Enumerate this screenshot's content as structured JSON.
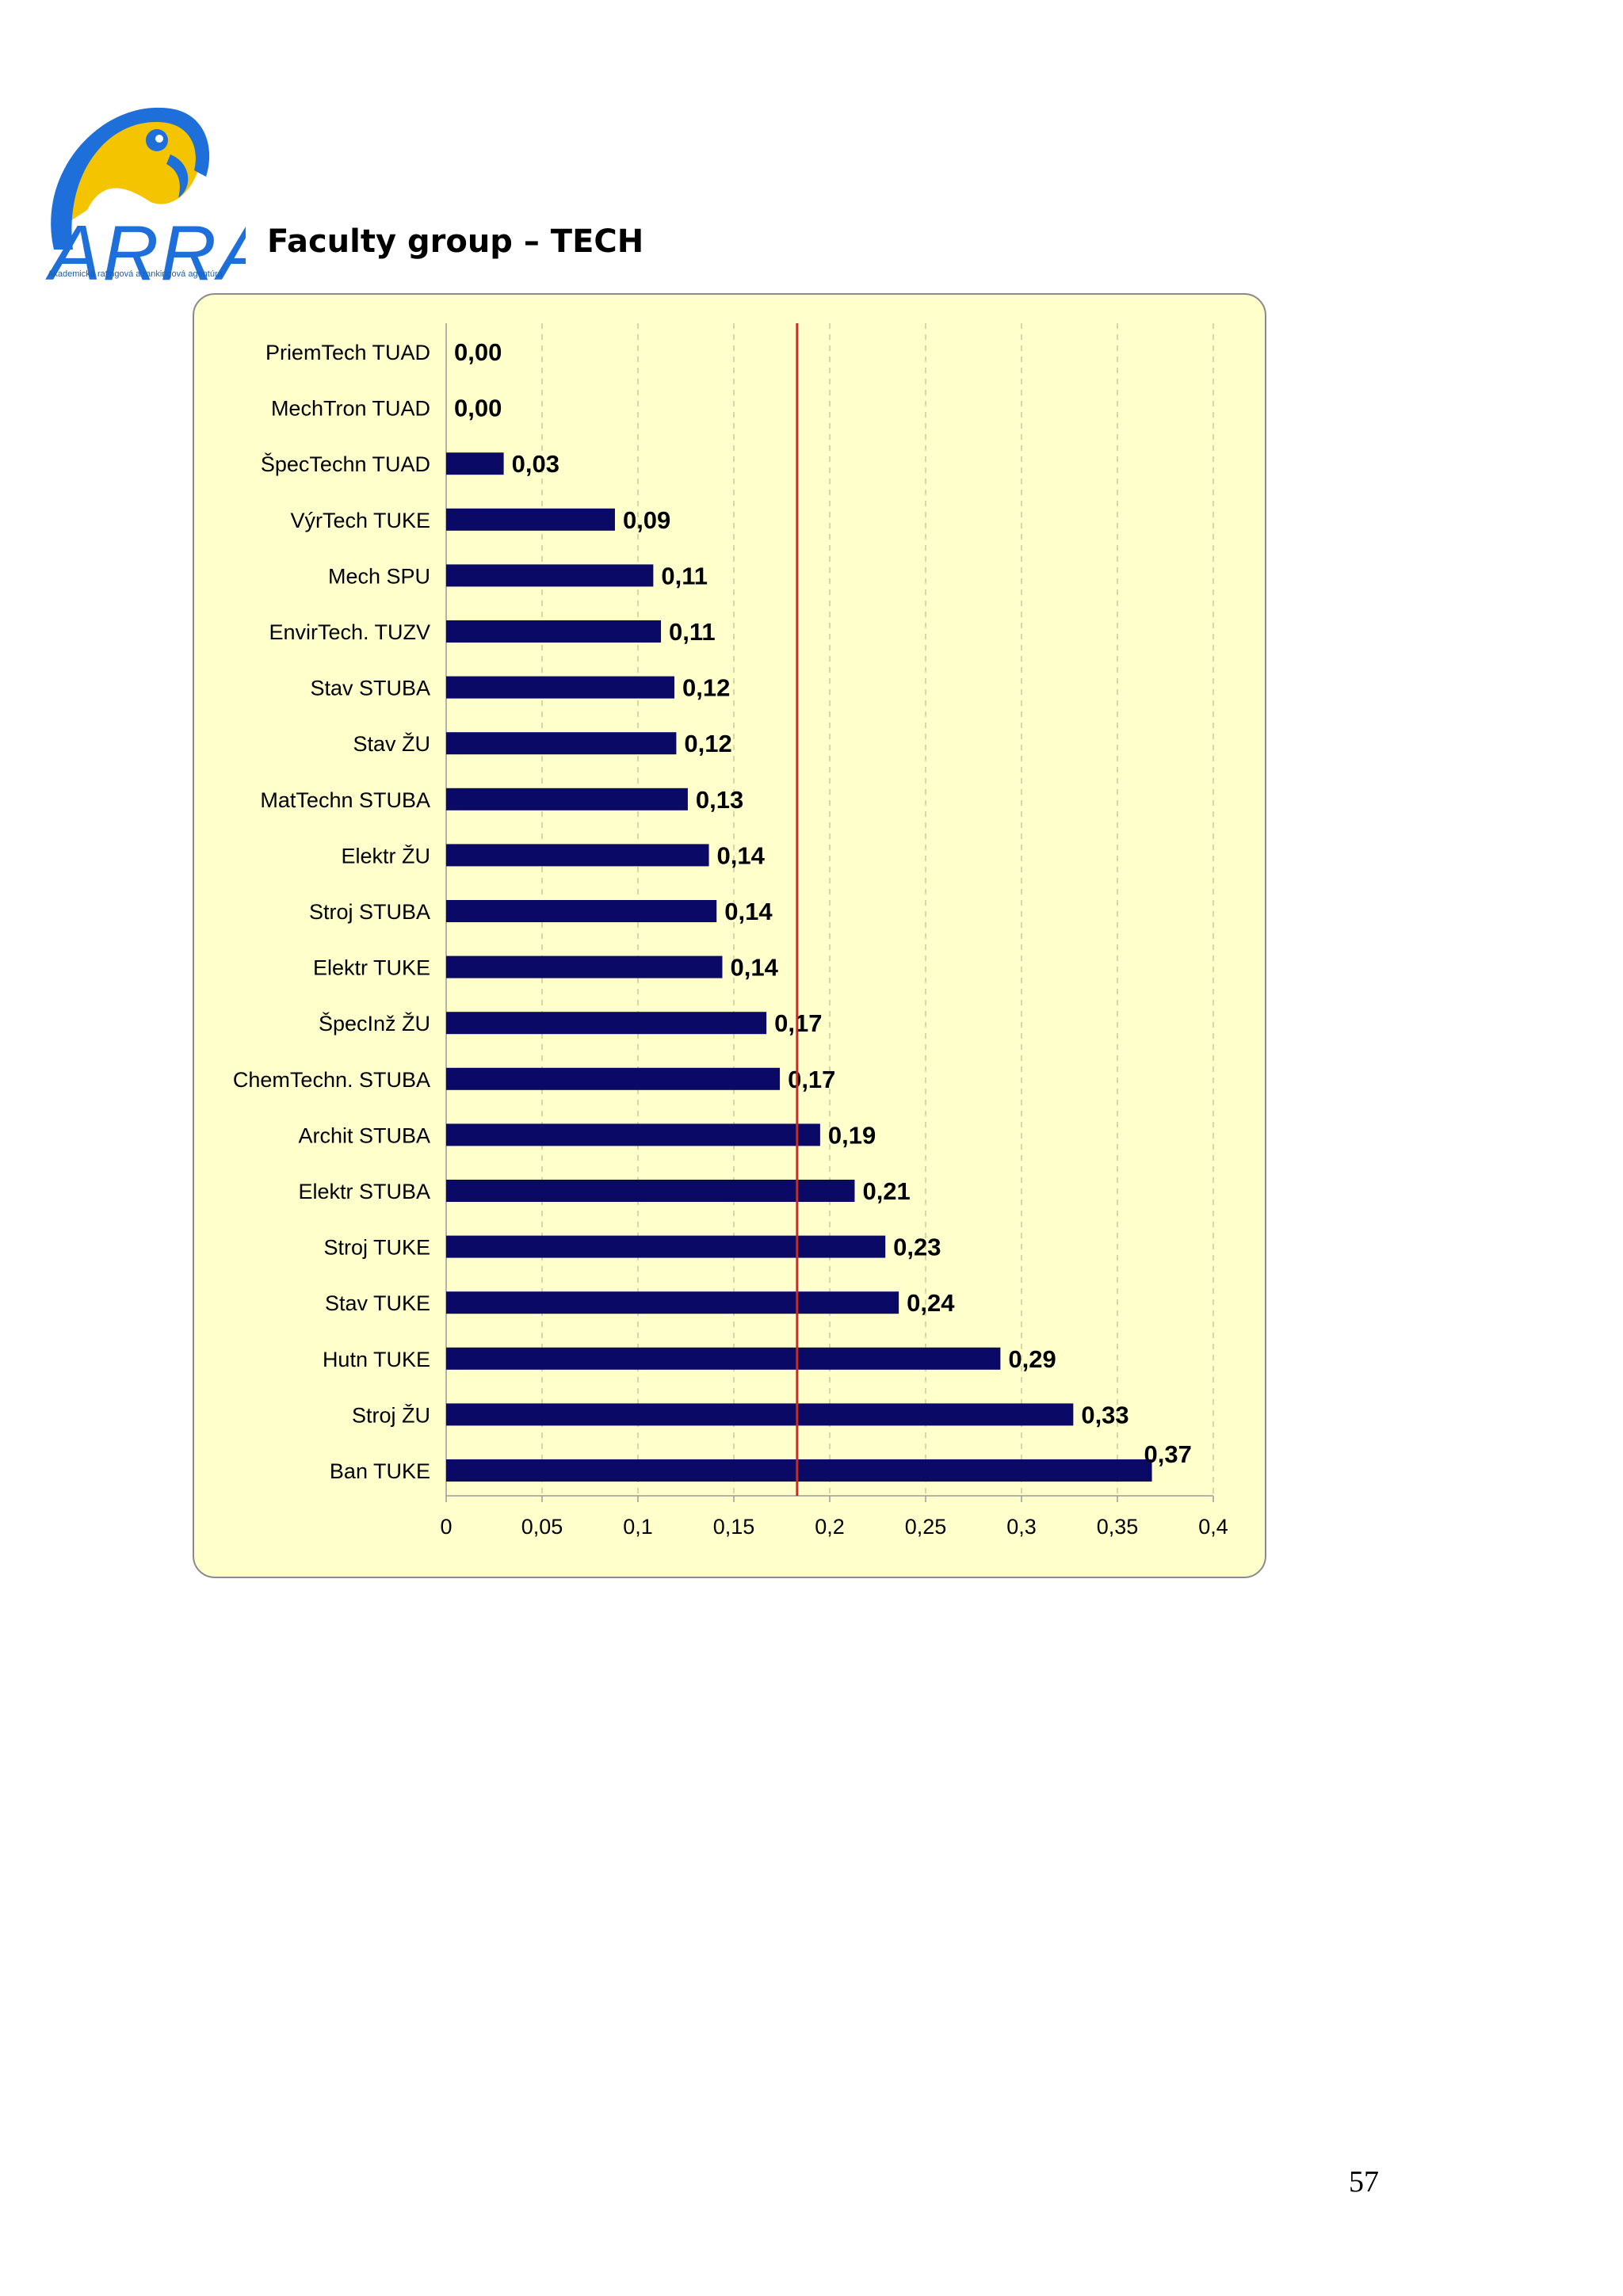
{
  "header": {
    "logo_text": "ARRA",
    "logo_tagline": "Akademická ratingová a rankingová agentúra",
    "title": "Faculty group – TECH"
  },
  "colors": {
    "bar": "#0a0a66",
    "reference_line": "#c0302a",
    "panel_bg": "#ffffcc",
    "logo_blue": "#1e6fd9",
    "logo_yellow": "#f5c400"
  },
  "chart_data": {
    "type": "bar",
    "orientation": "horizontal",
    "categories": [
      "PriemTech TUAD",
      "MechTron TUAD",
      "ŠpecTechn TUAD",
      "VýrTech TUKE",
      "Mech SPU",
      "EnvirTech. TUZV",
      "Stav STUBA",
      "Stav ŽU",
      "MatTechn STUBA",
      "Elektr ŽU",
      "Stroj STUBA",
      "Elektr TUKE",
      "ŠpecInž ŽU",
      "ChemTechn. STUBA",
      "Archit STUBA",
      "Elektr STUBA",
      "Stroj TUKE",
      "Stav TUKE",
      "Hutn TUKE",
      "Stroj ŽU",
      "Ban TUKE"
    ],
    "values": [
      0.0,
      0.0,
      0.03,
      0.088,
      0.108,
      0.112,
      0.119,
      0.12,
      0.126,
      0.137,
      0.141,
      0.144,
      0.167,
      0.174,
      0.195,
      0.213,
      0.229,
      0.236,
      0.289,
      0.327,
      0.368
    ],
    "value_labels": [
      "0,00",
      "0,00",
      "0,03",
      "0,09",
      "0,11",
      "0,11",
      "0,12",
      "0,12",
      "0,13",
      "0,14",
      "0,14",
      "0,14",
      "0,17",
      "0,17",
      "0,19",
      "0,21",
      "0,23",
      "0,24",
      "0,29",
      "0,33",
      "0,37"
    ],
    "x_ticks": [
      0,
      0.05,
      0.1,
      0.15,
      0.2,
      0.25,
      0.3,
      0.35,
      0.4
    ],
    "x_tick_labels": [
      "0",
      "0,05",
      "0,1",
      "0,15",
      "0,2",
      "0,25",
      "0,3",
      "0,35",
      "0,4"
    ],
    "xlim": [
      0,
      0.4
    ],
    "reference_line_value": 0.183,
    "title": "",
    "xlabel": "",
    "ylabel": "",
    "grid": "vertical-dashed"
  },
  "footer": {
    "page_number": "57"
  }
}
